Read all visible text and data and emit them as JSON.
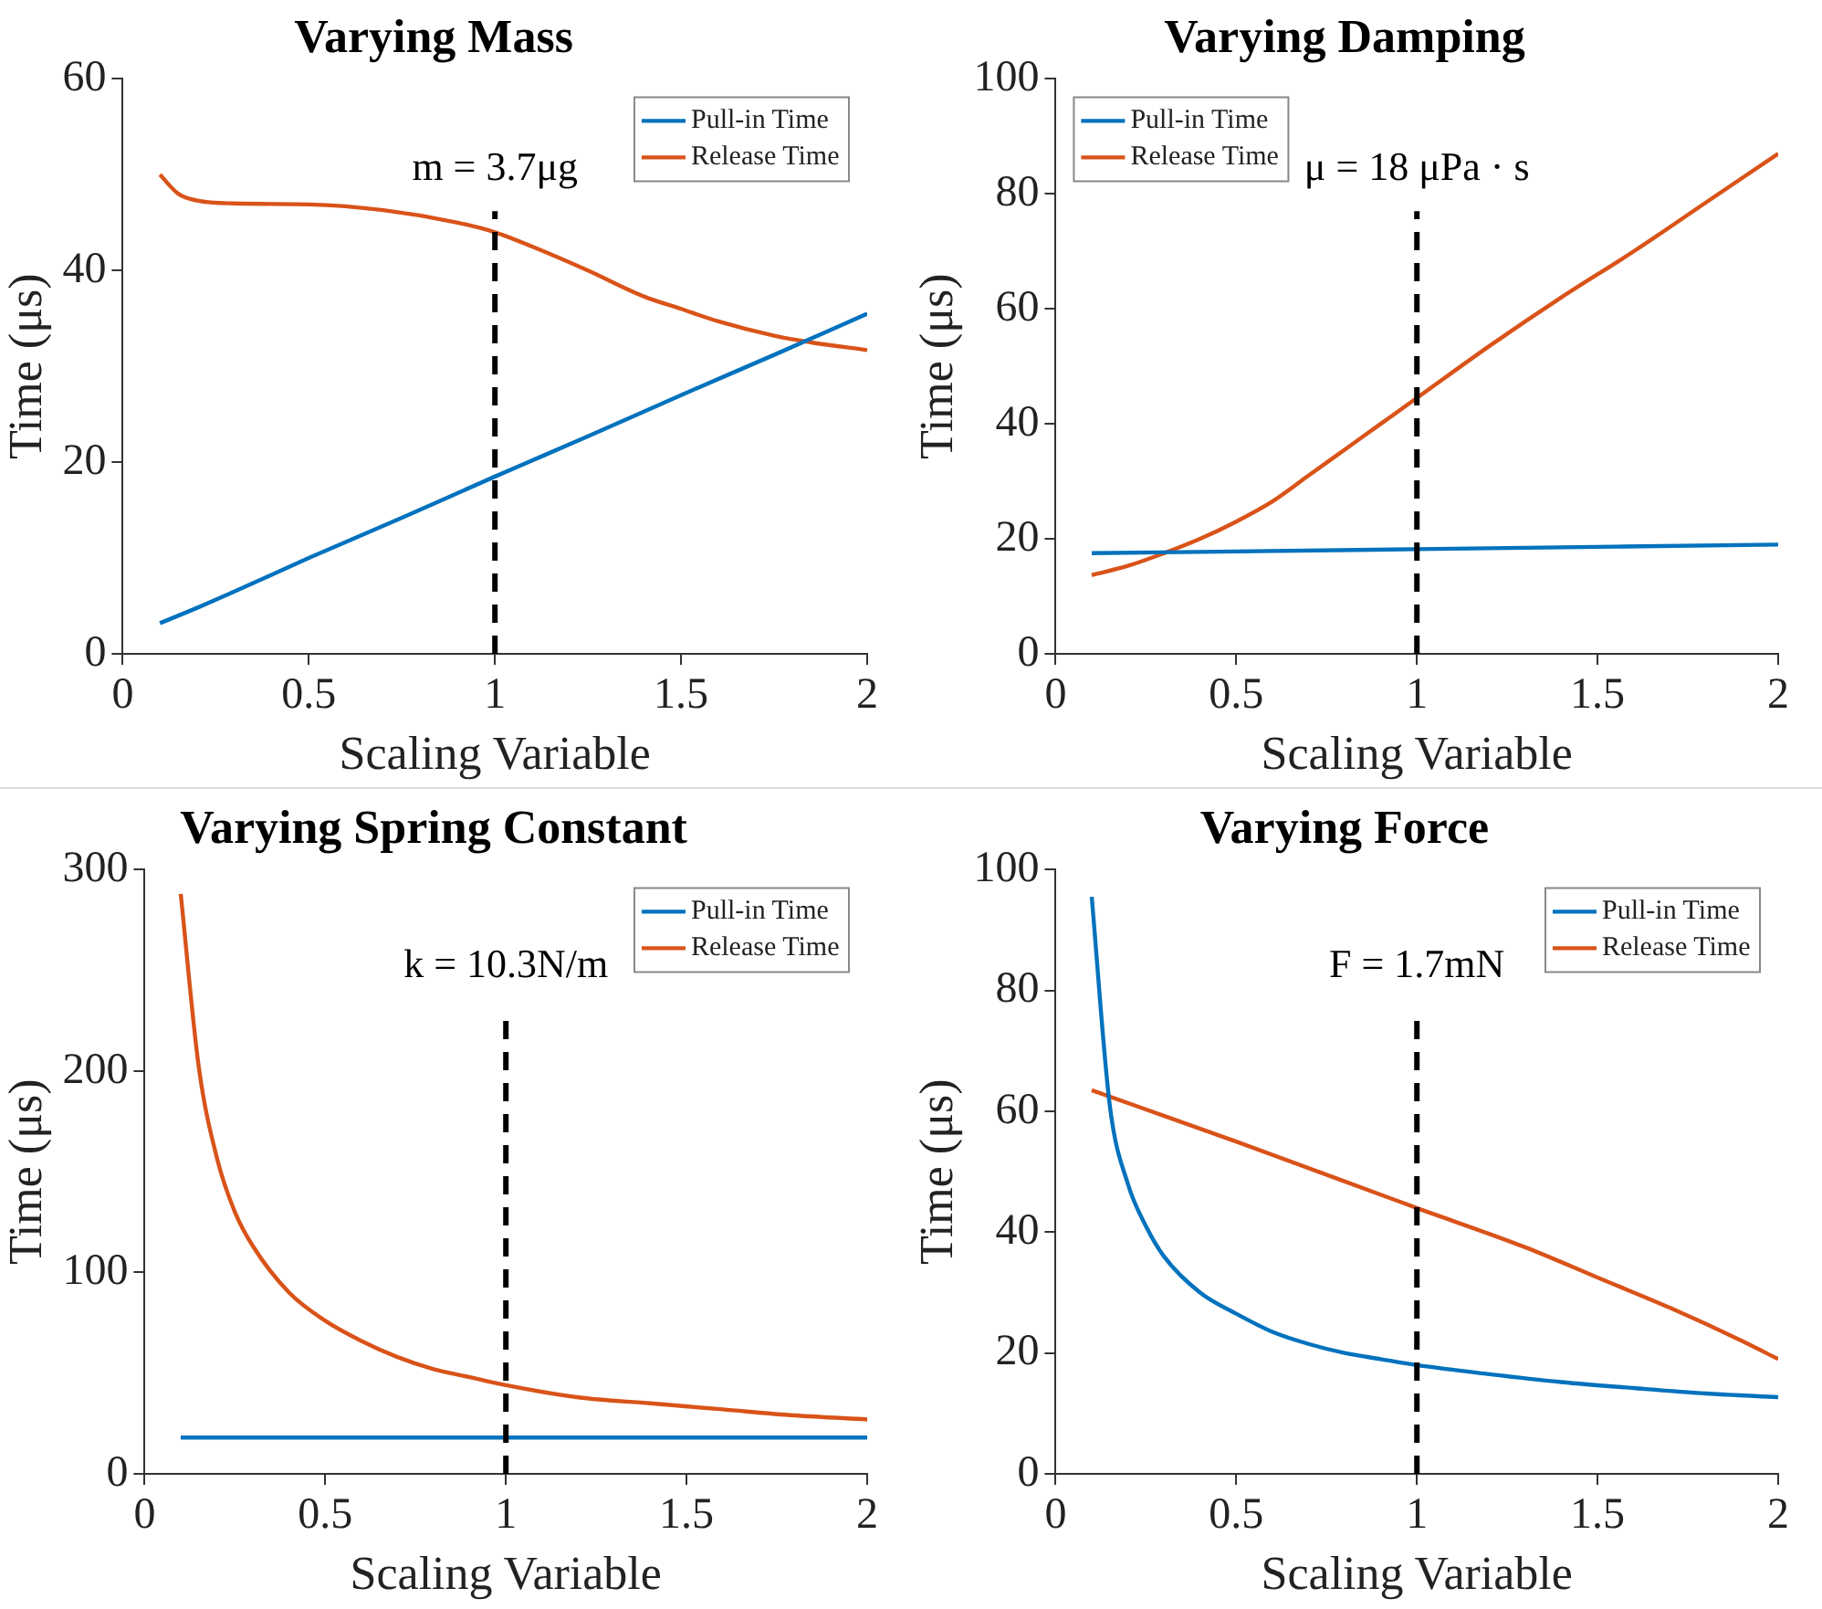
{
  "chart_data": [
    {
      "type": "line",
      "title": "Varying Mass",
      "xlabel": "Scaling Variable",
      "ylabel": "Time (μs)",
      "xlim": [
        0,
        2
      ],
      "xticks": [
        0,
        0.5,
        1,
        1.5,
        2
      ],
      "ylim": [
        0,
        60
      ],
      "yticks": [
        0,
        20,
        40,
        60
      ],
      "legend": "top right",
      "marker": "none",
      "line_style": "solid",
      "series": [
        {
          "name": "Pull-in Time",
          "color": "#0072bd",
          "x": [
            0.1,
            0.2,
            0.3,
            0.5,
            0.75,
            1,
            1.25,
            1.5,
            1.75,
            2
          ],
          "values": [
            3.2,
            4.8,
            6.5,
            10,
            14.2,
            18.5,
            22.7,
            27,
            31.2,
            35.5
          ]
        },
        {
          "name": "Release Time",
          "color": "#d95319",
          "x": [
            0.1,
            0.15,
            0.2,
            0.3,
            0.5,
            0.7,
            0.9,
            1,
            1.1,
            1.25,
            1.4,
            1.5,
            1.6,
            1.75,
            1.85,
            2
          ],
          "values": [
            50,
            48,
            47.3,
            47,
            46.9,
            46.3,
            45,
            44,
            42.5,
            40,
            37.3,
            36,
            34.7,
            33.2,
            32.5,
            31.7
          ]
        }
      ],
      "ref_lines": [
        {
          "axis": "x",
          "value": 1,
          "color": "#000000",
          "line_style": "dashed"
        }
      ],
      "annotations": [
        "m = 3.7μg"
      ]
    },
    {
      "type": "line",
      "title": "Varying Damping",
      "xlabel": "Scaling Variable",
      "ylabel": "Time (μs)",
      "xlim": [
        0,
        2
      ],
      "xticks": [
        0,
        0.5,
        1,
        1.5,
        2
      ],
      "ylim": [
        0,
        100
      ],
      "yticks": [
        0,
        20,
        40,
        60,
        80,
        100
      ],
      "legend": "top left",
      "marker": "none",
      "line_style": "solid",
      "series": [
        {
          "name": "Pull-in Time",
          "color": "#0072bd",
          "x": [
            0.1,
            1,
            2
          ],
          "values": [
            17.5,
            18.2,
            19
          ]
        },
        {
          "name": "Release Time",
          "color": "#d95319",
          "x": [
            0.1,
            0.2,
            0.3,
            0.4,
            0.5,
            0.6,
            0.7,
            0.8,
            0.9,
            1,
            1.2,
            1.4,
            1.6,
            1.8,
            2
          ],
          "values": [
            13.7,
            15.3,
            17.5,
            20,
            23,
            26.5,
            31,
            35.5,
            40,
            44.5,
            53.5,
            62,
            70,
            78.5,
            87
          ]
        }
      ],
      "ref_lines": [
        {
          "axis": "x",
          "value": 1,
          "color": "#000000",
          "line_style": "dashed"
        }
      ],
      "annotations": [
        "μ = 18 μPa · s"
      ]
    },
    {
      "type": "line",
      "title": "Varying Spring Constant",
      "xlabel": "Scaling Variable",
      "ylabel": "Time (μs)",
      "xlim": [
        0,
        2
      ],
      "xticks": [
        0,
        0.5,
        1,
        1.5,
        2
      ],
      "ylim": [
        0,
        300
      ],
      "yticks": [
        0,
        100,
        200,
        300
      ],
      "legend": "top right",
      "marker": "none",
      "line_style": "solid",
      "series": [
        {
          "name": "Pull-in Time",
          "color": "#0072bd",
          "x": [
            0.1,
            1,
            2
          ],
          "values": [
            18,
            18,
            18
          ]
        },
        {
          "name": "Release Time",
          "color": "#d95319",
          "x": [
            0.1,
            0.15,
            0.2,
            0.25,
            0.3,
            0.4,
            0.5,
            0.6,
            0.7,
            0.8,
            0.9,
            1,
            1.2,
            1.4,
            1.6,
            1.8,
            2
          ],
          "values": [
            288,
            202,
            157,
            130,
            113,
            90,
            76,
            66,
            58,
            52,
            48,
            44,
            38,
            35,
            32,
            29,
            27
          ]
        }
      ],
      "ref_lines": [
        {
          "axis": "x",
          "value": 1,
          "color": "#000000",
          "line_style": "dashed"
        }
      ],
      "annotations": [
        "k = 10.3N/m"
      ]
    },
    {
      "type": "line",
      "title": "Varying Force",
      "xlabel": "Scaling Variable",
      "ylabel": "Time (μs)",
      "xlim": [
        0,
        2
      ],
      "xticks": [
        0,
        0.5,
        1,
        1.5,
        2
      ],
      "ylim": [
        0,
        100
      ],
      "yticks": [
        0,
        20,
        40,
        60,
        80,
        100
      ],
      "legend": "top right",
      "marker": "none",
      "line_style": "solid",
      "series": [
        {
          "name": "Pull-in Time",
          "color": "#0072bd",
          "x": [
            0.1,
            0.15,
            0.2,
            0.25,
            0.3,
            0.4,
            0.5,
            0.6,
            0.7,
            0.8,
            0.9,
            1,
            1.2,
            1.4,
            1.6,
            1.8,
            2
          ],
          "values": [
            95.5,
            61,
            48,
            41,
            36,
            30,
            26.5,
            23.5,
            21.5,
            20,
            19,
            18,
            16.5,
            15.2,
            14.2,
            13.3,
            12.7
          ]
        },
        {
          "name": "Release Time",
          "color": "#d95319",
          "x": [
            0.1,
            0.5,
            1,
            1.3,
            1.5,
            1.7,
            1.9,
            2
          ],
          "values": [
            63.5,
            55,
            44,
            37.5,
            32.5,
            27.5,
            22,
            19
          ]
        }
      ],
      "ref_lines": [
        {
          "axis": "x",
          "value": 1,
          "color": "#000000",
          "line_style": "dashed"
        }
      ],
      "annotations": [
        "F = 1.7mN"
      ]
    }
  ]
}
